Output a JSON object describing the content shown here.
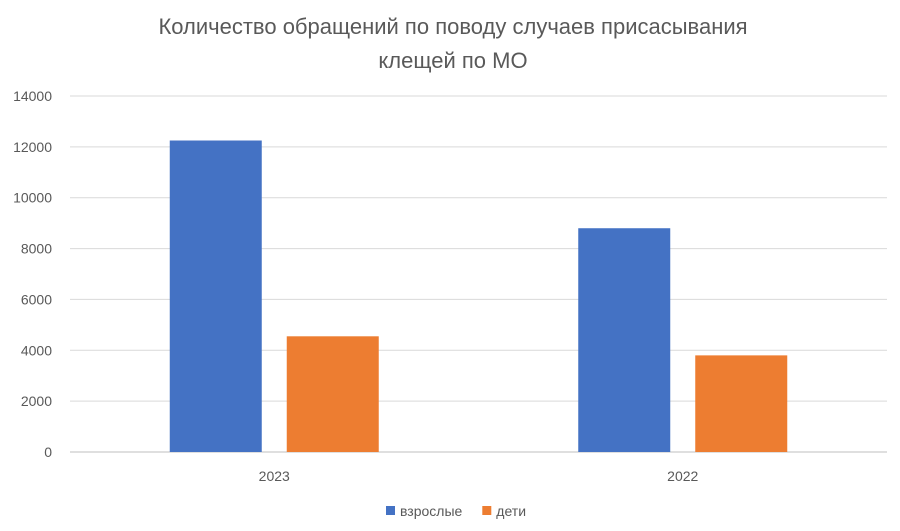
{
  "chart_data": {
    "type": "bar",
    "title": "Количество обращений по поводу случаев присасывания клещей по МО",
    "title_lines": [
      "Количество обращений по поводу случаев присасывания",
      "клещей по МО"
    ],
    "categories": [
      "2023",
      "2022"
    ],
    "series": [
      {
        "name": "взрослые",
        "color": "#4472C4",
        "values": [
          12250,
          8800
        ]
      },
      {
        "name": "дети",
        "color": "#ED7D31",
        "values": [
          4550,
          3800
        ]
      }
    ],
    "ylim": [
      0,
      14000
    ],
    "yticks": [
      "0",
      "2000",
      "4000",
      "6000",
      "8000",
      "10000",
      "12000",
      "14000"
    ],
    "grid": true,
    "legend_position": "bottom",
    "xlabel": "",
    "ylabel": ""
  }
}
